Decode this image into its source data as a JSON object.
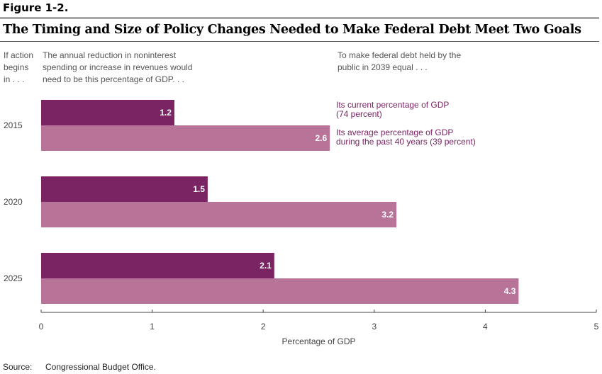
{
  "figure_label": "Figure 1-2.",
  "chart_data": {
    "type": "bar",
    "orientation": "horizontal",
    "title": "The Timing and Size of Policy Changes Needed to Make Federal Debt Meet Two Goals",
    "categories": [
      "2015",
      "2020",
      "2025"
    ],
    "series": [
      {
        "name": "Its current percentage of GDP (74 percent)",
        "legend_lines": [
          "Its current percentage of GDP",
          "(74 percent)"
        ],
        "color": "#7b2463",
        "values": [
          1.2,
          1.5,
          2.1
        ],
        "labels": [
          "1.2",
          "1.5",
          "2.1"
        ]
      },
      {
        "name": "Its average percentage of GDP during the past 40 years (39 percent)",
        "legend_lines": [
          "Its average percentage of GDP",
          "during the past 40 years (39 percent)"
        ],
        "color": "#b87399",
        "values": [
          2.6,
          3.2,
          4.3
        ],
        "labels": [
          "2.6",
          "3.2",
          "4.3"
        ]
      }
    ],
    "xlabel": "Percentage of GDP",
    "xlim": [
      0,
      5
    ],
    "xticks": [
      "0",
      "1",
      "2",
      "3",
      "4",
      "5"
    ],
    "grid": false,
    "legend_placement": "right, beside 2015 bars"
  },
  "notes": {
    "left": [
      "If action",
      "begins",
      "in . . ."
    ],
    "middle": [
      "The annual reduction in noninterest",
      "spending or increase in revenues would",
      "need to be this percentage of GDP. . ."
    ],
    "right": [
      "To make federal debt held by the",
      "public in 2039 equal . . ."
    ]
  },
  "source": {
    "label": "Source:",
    "text": "Congressional Budget Office."
  }
}
